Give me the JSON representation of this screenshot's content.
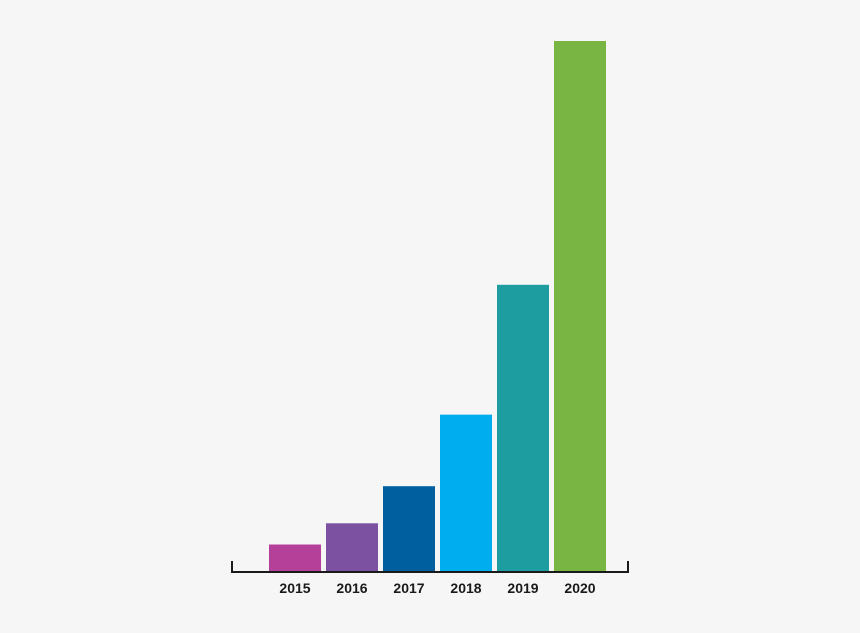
{
  "chart_data": {
    "type": "bar",
    "categories": [
      "2015",
      "2016",
      "2017",
      "2018",
      "2019",
      "2020"
    ],
    "values": [
      5,
      9,
      16,
      29.5,
      54,
      100
    ],
    "colors": [
      "#b5409a",
      "#7c51a1",
      "#00609f",
      "#00aeef",
      "#1d9d9f",
      "#78b543"
    ],
    "ylim": [
      0,
      100
    ],
    "title": "",
    "xlabel": "",
    "ylabel": "",
    "grid": false,
    "legend": "none"
  }
}
